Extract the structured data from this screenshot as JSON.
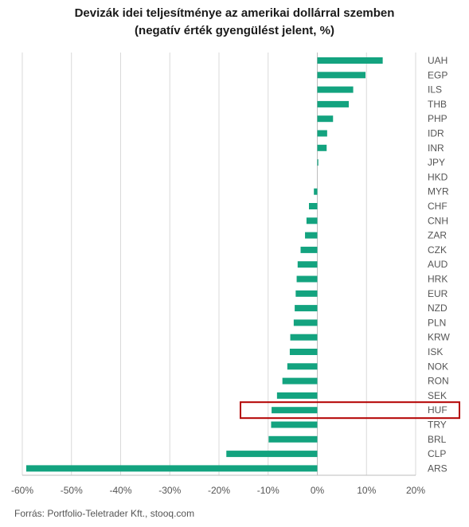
{
  "title_line1": "Devizák idei teljesítménye az amerikai dollárral szemben",
  "title_line2": "(negatív érték gyengülést jelent, %)",
  "source": "Forrás: Portfolio-Teletrader Kft., stooq.com",
  "colors": {
    "bar": "#13a37f",
    "grid": "#d9d9d9",
    "axis": "#bdbdbd",
    "highlight": "#b30000",
    "label": "#555555"
  },
  "chart_data": {
    "type": "bar",
    "orientation": "horizontal",
    "title": "Devizák idei teljesítménye az amerikai dollárral szemben",
    "subtitle": "(negatív érték gyengülést jelent, %)",
    "xlabel": "",
    "ylabel": "",
    "xlim": [
      -60,
      20
    ],
    "xticks": [
      -60,
      -50,
      -40,
      -30,
      -20,
      -10,
      0,
      10,
      20
    ],
    "xtick_labels": [
      "-60%",
      "-50%",
      "-40%",
      "-30%",
      "-20%",
      "-10%",
      "0%",
      "10%",
      "20%"
    ],
    "grid": true,
    "highlight": "HUF",
    "categories": [
      "UAH",
      "EGP",
      "ILS",
      "THB",
      "PHP",
      "IDR",
      "INR",
      "JPY",
      "HKD",
      "MYR",
      "CHF",
      "CNH",
      "ZAR",
      "CZK",
      "AUD",
      "HRK",
      "EUR",
      "NZD",
      "PLN",
      "KRW",
      "ISK",
      "NOK",
      "RON",
      "SEK",
      "HUF",
      "TRY",
      "BRL",
      "CLP",
      "ARS"
    ],
    "values": [
      13.3,
      9.8,
      7.3,
      6.4,
      3.2,
      2.0,
      1.9,
      0.2,
      0.0,
      -0.7,
      -1.7,
      -2.2,
      -2.5,
      -3.4,
      -4.0,
      -4.2,
      -4.4,
      -4.6,
      -4.8,
      -5.5,
      -5.6,
      -6.1,
      -7.1,
      -8.2,
      -9.3,
      -9.4,
      -9.9,
      -18.5,
      -59.2
    ]
  }
}
